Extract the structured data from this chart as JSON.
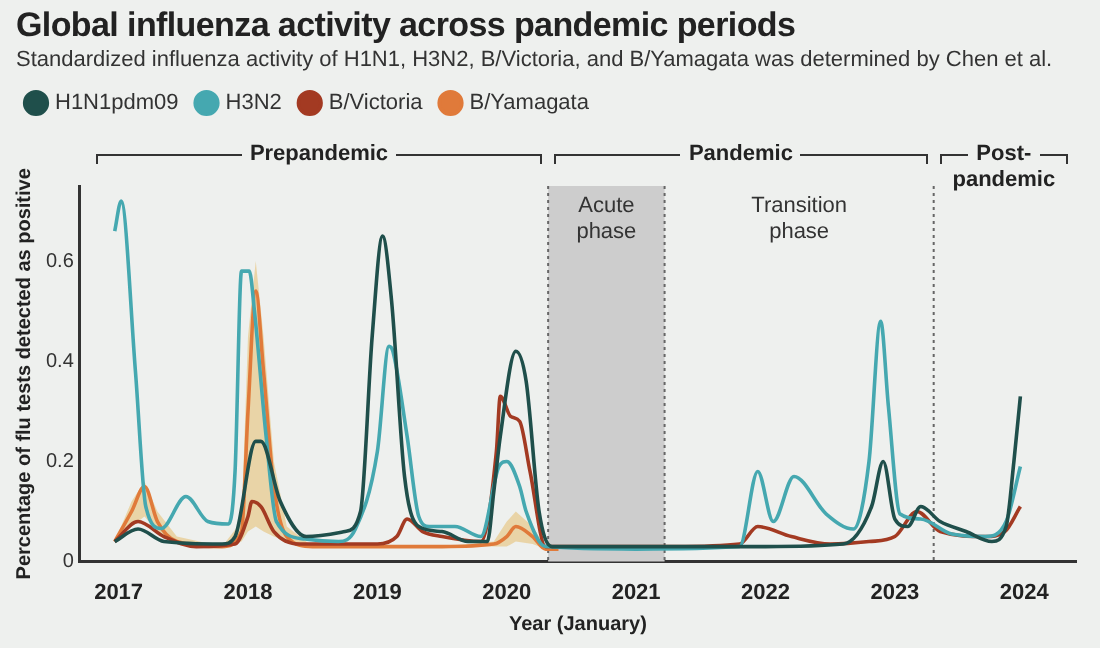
{
  "chart_data": {
    "type": "line",
    "title": "Global influenza activity across pandemic periods",
    "subtitle": "Standardized influenza activity of H1N1, H3N2, B/Victoria, and B/Yamagata was determined by Chen et al.",
    "xlabel": "Year (January)",
    "ylabel": "Percentage of flu tests detected as positive",
    "xlim": [
      2016.7,
      2024.4
    ],
    "xticks": [
      2017,
      2018,
      2019,
      2020,
      2021,
      2022,
      2023,
      2024
    ],
    "ylim": [
      0,
      0.75
    ],
    "yticks": [
      0,
      0.2,
      0.4,
      0.6
    ],
    "grid": false,
    "legend": "top left",
    "marker": "none",
    "line_style": "solid",
    "bands": [
      {
        "axis": "x",
        "from": 2020.32,
        "to": 2021.22,
        "label": "Acute phase",
        "color": "#cdcdcd"
      }
    ],
    "ref_lines": [
      {
        "axis": "x",
        "value": 2020.32,
        "color": "#666666",
        "line_style": "dotted"
      },
      {
        "axis": "x",
        "value": 2021.22,
        "color": "#666666",
        "line_style": "dotted"
      },
      {
        "axis": "x",
        "value": 2023.3,
        "color": "#666666",
        "line_style": "dotted"
      }
    ],
    "annotations": [
      "Prepandemic",
      "Pandemic",
      "Post-pandemic",
      "Transition phase"
    ],
    "series": [
      {
        "name": "H1N1pdm09",
        "color": "#1f4f4b",
        "x": [
          2016.97,
          2017.15,
          2017.35,
          2017.8,
          2017.9,
          2018.06,
          2018.1,
          2018.25,
          2018.45,
          2018.75,
          2018.87,
          2018.96,
          2019.04,
          2019.11,
          2019.21,
          2019.32,
          2019.5,
          2019.7,
          2019.85,
          2019.9,
          2019.95,
          2020.07,
          2020.15,
          2020.25,
          2020.35,
          2021.0,
          2022.0,
          2022.6,
          2022.82,
          2022.91,
          2023.0,
          2023.1,
          2023.2,
          2023.35,
          2023.55,
          2023.75,
          2023.86,
          2023.92,
          2023.97
        ],
        "values": [
          0.04,
          0.065,
          0.04,
          0.035,
          0.05,
          0.24,
          0.24,
          0.12,
          0.05,
          0.06,
          0.1,
          0.45,
          0.65,
          0.52,
          0.17,
          0.07,
          0.06,
          0.04,
          0.04,
          0.14,
          0.25,
          0.42,
          0.36,
          0.1,
          0.03,
          0.03,
          0.03,
          0.035,
          0.11,
          0.2,
          0.085,
          0.07,
          0.11,
          0.08,
          0.06,
          0.04,
          0.07,
          0.2,
          0.33
        ]
      },
      {
        "name": "H3N2",
        "color": "#45a8b0",
        "x": [
          2016.97,
          2017.02,
          2017.13,
          2017.21,
          2017.33,
          2017.52,
          2017.69,
          2017.85,
          2017.9,
          2017.95,
          2018.01,
          2018.05,
          2018.14,
          2018.22,
          2018.44,
          2018.7,
          2018.83,
          2019.0,
          2019.09,
          2019.12,
          2019.23,
          2019.32,
          2019.4,
          2019.6,
          2019.8,
          2019.94,
          2020.0,
          2020.1,
          2020.15,
          2020.3,
          2021.0,
          2021.8,
          2021.94,
          2022.06,
          2022.22,
          2022.47,
          2022.68,
          2022.8,
          2022.89,
          2022.95,
          2023.04,
          2023.2,
          2023.44,
          2023.7,
          2023.86,
          2023.97
        ],
        "values": [
          0.66,
          0.72,
          0.38,
          0.11,
          0.066,
          0.13,
          0.08,
          0.075,
          0.18,
          0.58,
          0.58,
          0.5,
          0.25,
          0.08,
          0.045,
          0.04,
          0.065,
          0.22,
          0.43,
          0.42,
          0.25,
          0.09,
          0.07,
          0.07,
          0.05,
          0.19,
          0.2,
          0.15,
          0.1,
          0.03,
          0.025,
          0.03,
          0.18,
          0.08,
          0.17,
          0.095,
          0.065,
          0.2,
          0.48,
          0.31,
          0.095,
          0.085,
          0.055,
          0.05,
          0.08,
          0.19
        ]
      },
      {
        "name": "B/Victoria",
        "color": "#a33a22",
        "x": [
          2016.97,
          2017.15,
          2017.35,
          2017.6,
          2017.9,
          2018.0,
          2018.03,
          2018.1,
          2018.2,
          2018.4,
          2019.0,
          2019.15,
          2019.23,
          2019.35,
          2019.5,
          2019.8,
          2019.92,
          2019.95,
          2020.03,
          2020.1,
          2020.18,
          2020.3,
          2021.3,
          2021.8,
          2021.94,
          2022.2,
          2022.5,
          2022.8,
          2023.0,
          2023.17,
          2023.35,
          2023.7,
          2023.85,
          2023.97
        ],
        "values": [
          0.04,
          0.08,
          0.05,
          0.03,
          0.035,
          0.09,
          0.12,
          0.11,
          0.06,
          0.035,
          0.035,
          0.05,
          0.085,
          0.06,
          0.05,
          0.04,
          0.22,
          0.33,
          0.29,
          0.28,
          0.18,
          0.03,
          0.03,
          0.035,
          0.07,
          0.05,
          0.035,
          0.04,
          0.05,
          0.1,
          0.06,
          0.05,
          0.06,
          0.11
        ]
      },
      {
        "name": "B/Yamagata",
        "color": "#e07a3a",
        "x": [
          2016.97,
          2017.1,
          2017.2,
          2017.3,
          2017.45,
          2017.8,
          2017.95,
          2018.0,
          2018.06,
          2018.12,
          2018.2,
          2018.3,
          2018.5,
          2019.0,
          2019.5,
          2019.9,
          2020.0,
          2020.07,
          2020.2,
          2020.3,
          2020.4
        ],
        "values": [
          0.04,
          0.1,
          0.15,
          0.08,
          0.04,
          0.03,
          0.06,
          0.3,
          0.54,
          0.38,
          0.15,
          0.05,
          0.03,
          0.03,
          0.03,
          0.035,
          0.05,
          0.07,
          0.05,
          0.025,
          0.025
        ],
        "lower": [
          0.04,
          0.07,
          0.09,
          0.06,
          0.04,
          0.03,
          0.04,
          0.06,
          0.07,
          0.06,
          0.05,
          0.04,
          0.03,
          0.03,
          0.03,
          0.03,
          0.03,
          0.04,
          0.035,
          0.025,
          0.025
        ],
        "upper": [
          0.04,
          0.12,
          0.16,
          0.1,
          0.05,
          0.03,
          0.08,
          0.45,
          0.6,
          0.45,
          0.2,
          0.07,
          0.03,
          0.03,
          0.03,
          0.04,
          0.08,
          0.1,
          0.07,
          0.03,
          0.025
        ]
      }
    ]
  }
}
